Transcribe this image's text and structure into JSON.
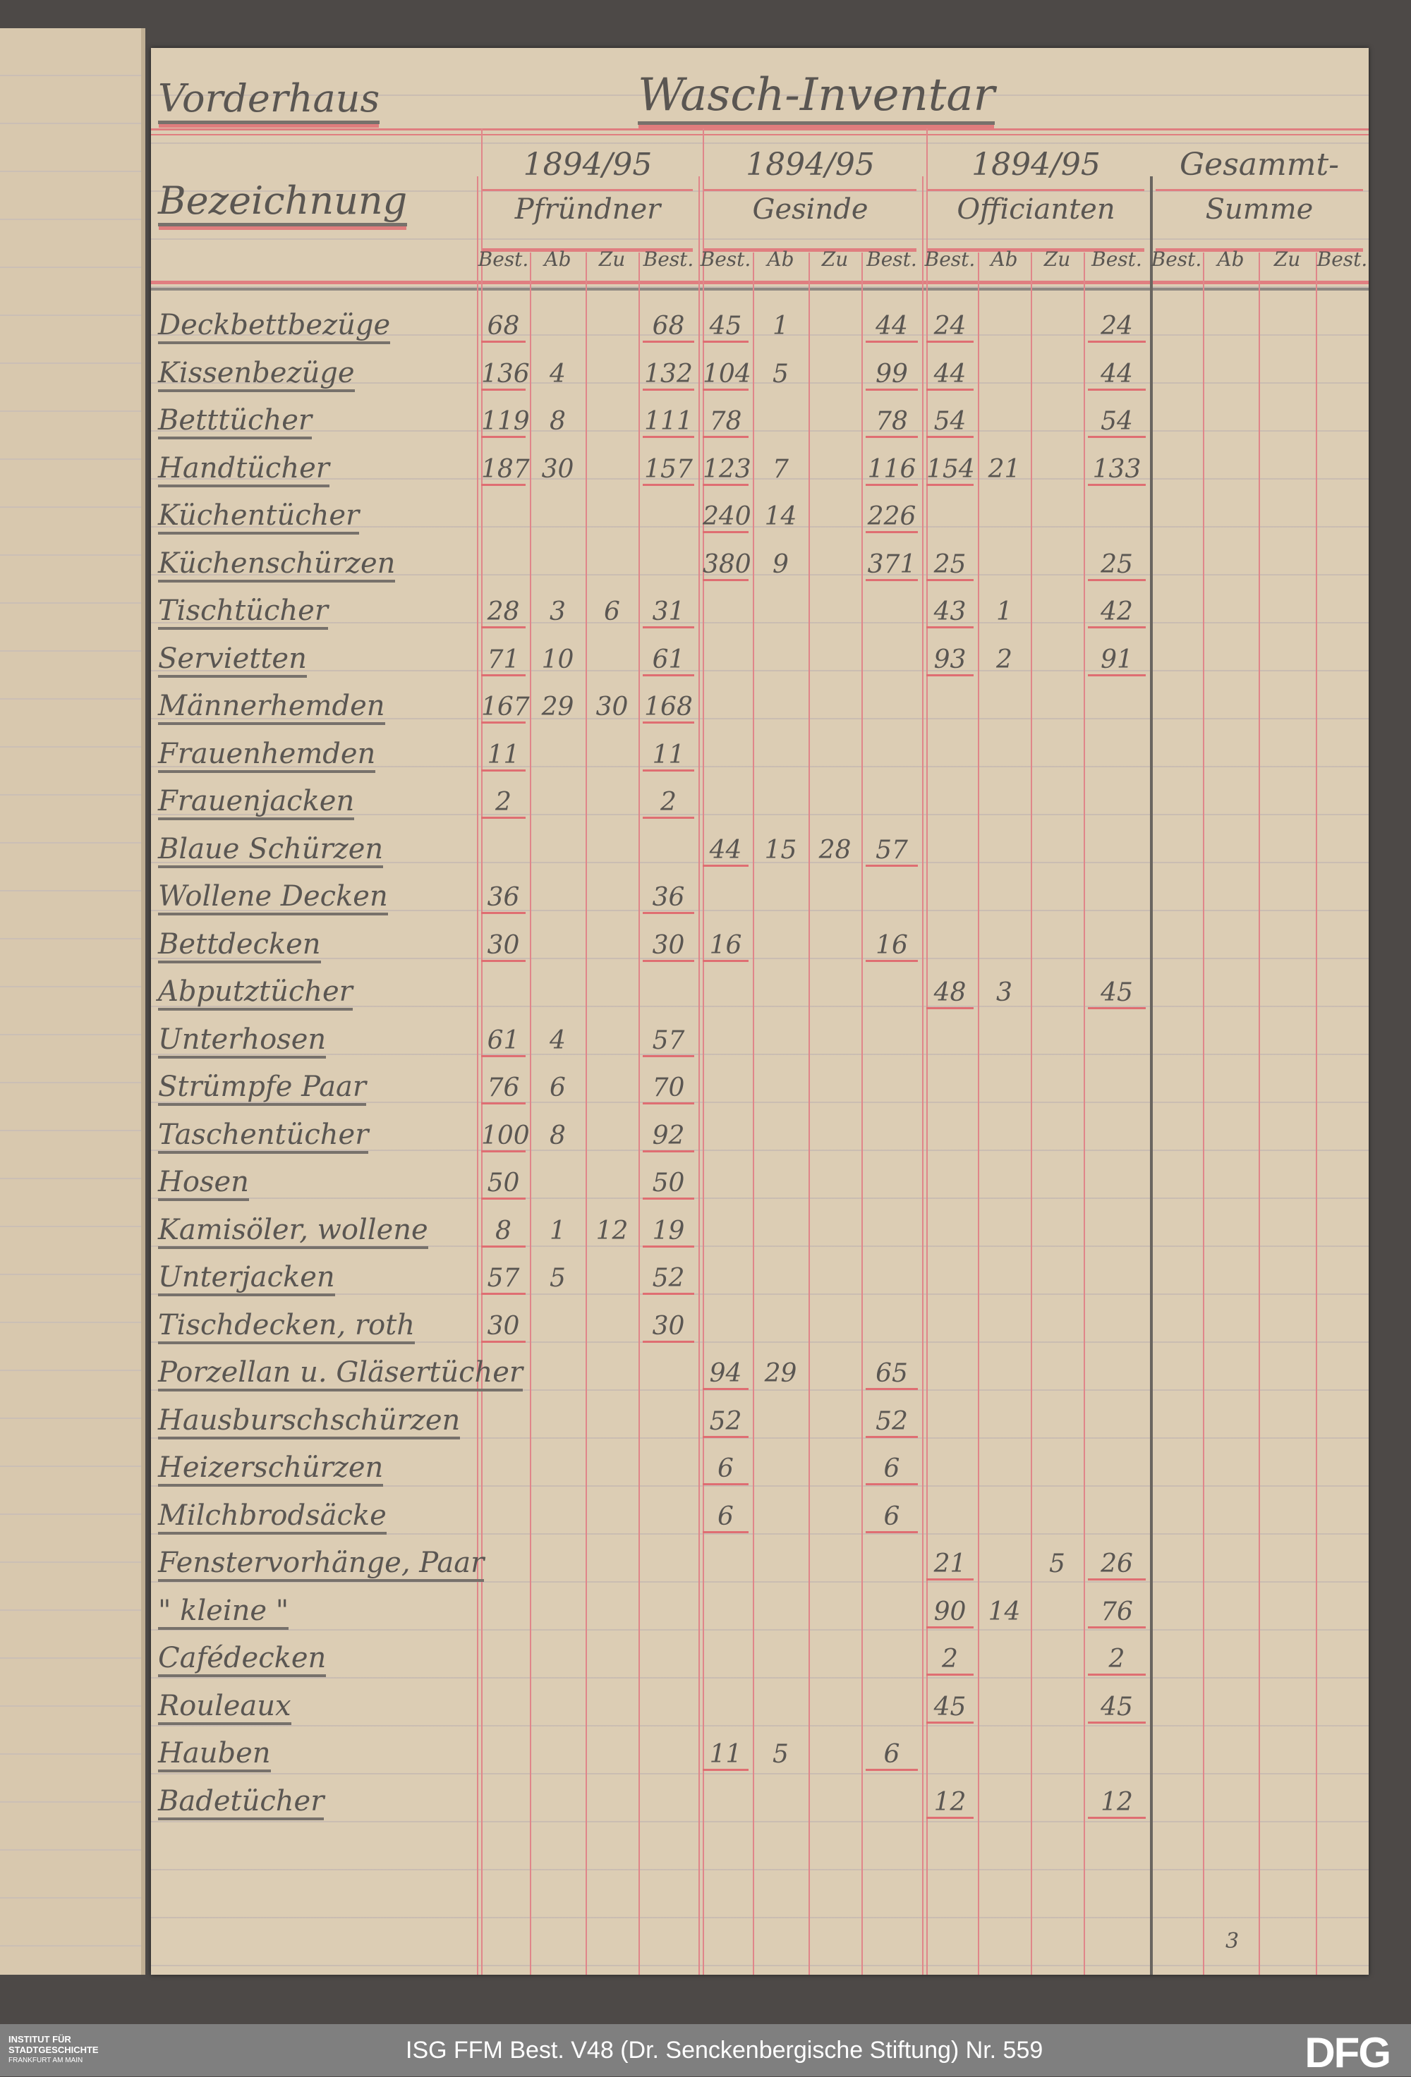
{
  "header": {
    "building": "Vorderhaus",
    "title": "Wasch-Inventar",
    "label_column": "Bezeichnung",
    "groups": [
      {
        "year": "1894/95",
        "name": "Pfründner"
      },
      {
        "year": "1894/95",
        "name": "Gesinde"
      },
      {
        "year": "1894/95",
        "name": "Officianten"
      },
      {
        "year": "Gesammt-",
        "name": "Summe"
      }
    ],
    "subcolumns": [
      "Best.",
      "Ab",
      "Zu",
      "Best."
    ]
  },
  "rows": [
    {
      "name": "Deckbettbezüge",
      "v": [
        "68",
        "",
        "",
        "68",
        "45",
        "1",
        "",
        "44",
        "24",
        "",
        "",
        "24"
      ]
    },
    {
      "name": "Kissenbezüge",
      "v": [
        "136",
        "4",
        "",
        "132",
        "104",
        "5",
        "",
        "99",
        "44",
        "",
        "",
        "44"
      ]
    },
    {
      "name": "Betttücher",
      "v": [
        "119",
        "8",
        "",
        "111",
        "78",
        "",
        "",
        "78",
        "54",
        "",
        "",
        "54"
      ]
    },
    {
      "name": "Handtücher",
      "v": [
        "187",
        "30",
        "",
        "157",
        "123",
        "7",
        "",
        "116",
        "154",
        "21",
        "",
        "133"
      ]
    },
    {
      "name": "Küchentücher",
      "v": [
        "",
        "",
        "",
        "",
        "240",
        "14",
        "",
        "226",
        "",
        "",
        "",
        ""
      ]
    },
    {
      "name": "Küchenschürzen",
      "v": [
        "",
        "",
        "",
        "",
        "380",
        "9",
        "",
        "371",
        "25",
        "",
        "",
        "25"
      ]
    },
    {
      "name": "Tischtücher",
      "v": [
        "28",
        "3",
        "6",
        "31",
        "",
        "",
        "",
        "",
        "43",
        "1",
        "",
        "42"
      ]
    },
    {
      "name": "Servietten",
      "v": [
        "71",
        "10",
        "",
        "61",
        "",
        "",
        "",
        "",
        "93",
        "2",
        "",
        "91"
      ]
    },
    {
      "name": "Männerhemden",
      "v": [
        "167",
        "29",
        "30",
        "168",
        "",
        "",
        "",
        "",
        "",
        "",
        "",
        ""
      ]
    },
    {
      "name": "Frauenhemden",
      "v": [
        "11",
        "",
        "",
        "11",
        "",
        "",
        "",
        "",
        "",
        "",
        "",
        ""
      ]
    },
    {
      "name": "Frauenjacken",
      "v": [
        "2",
        "",
        "",
        "2",
        "",
        "",
        "",
        "",
        "",
        "",
        "",
        ""
      ]
    },
    {
      "name": "Blaue Schürzen",
      "v": [
        "",
        "",
        "",
        "",
        "44",
        "15",
        "28",
        "57",
        "",
        "",
        "",
        ""
      ]
    },
    {
      "name": "Wollene Decken",
      "v": [
        "36",
        "",
        "",
        "36",
        "",
        "",
        "",
        "",
        "",
        "",
        "",
        ""
      ]
    },
    {
      "name": "Bettdecken",
      "v": [
        "30",
        "",
        "",
        "30",
        "16",
        "",
        "",
        "16",
        "",
        "",
        "",
        ""
      ]
    },
    {
      "name": "Abputztücher",
      "v": [
        "",
        "",
        "",
        "",
        "",
        "",
        "",
        "",
        "48",
        "3",
        "",
        "45"
      ]
    },
    {
      "name": "Unterhosen",
      "v": [
        "61",
        "4",
        "",
        "57",
        "",
        "",
        "",
        "",
        "",
        "",
        "",
        ""
      ]
    },
    {
      "name": "Strümpfe    Paar",
      "v": [
        "76",
        "6",
        "",
        "70",
        "",
        "",
        "",
        "",
        "",
        "",
        "",
        ""
      ]
    },
    {
      "name": "Taschentücher",
      "v": [
        "100",
        "8",
        "",
        "92",
        "",
        "",
        "",
        "",
        "",
        "",
        "",
        ""
      ]
    },
    {
      "name": "Hosen",
      "v": [
        "50",
        "",
        "",
        "50",
        "",
        "",
        "",
        "",
        "",
        "",
        "",
        ""
      ]
    },
    {
      "name": "Kamisöler, wollene",
      "v": [
        "8",
        "1",
        "12",
        "19",
        "",
        "",
        "",
        "",
        "",
        "",
        "",
        ""
      ]
    },
    {
      "name": "Unterjacken",
      "v": [
        "57",
        "5",
        "",
        "52",
        "",
        "",
        "",
        "",
        "",
        "",
        "",
        ""
      ]
    },
    {
      "name": "Tischdecken, roth",
      "v": [
        "30",
        "",
        "",
        "30",
        "",
        "",
        "",
        "",
        "",
        "",
        "",
        ""
      ]
    },
    {
      "name": "Porzellan u. Gläsertücher",
      "v": [
        "",
        "",
        "",
        "",
        "94",
        "29",
        "",
        "65",
        "",
        "",
        "",
        ""
      ]
    },
    {
      "name": "Hausburschschürzen",
      "v": [
        "",
        "",
        "",
        "",
        "52",
        "",
        "",
        "52",
        "",
        "",
        "",
        ""
      ]
    },
    {
      "name": "Heizerschürzen",
      "v": [
        "",
        "",
        "",
        "",
        "6",
        "",
        "",
        "6",
        "",
        "",
        "",
        ""
      ]
    },
    {
      "name": "Milchbrodsäcke",
      "v": [
        "",
        "",
        "",
        "",
        "6",
        "",
        "",
        "6",
        "",
        "",
        "",
        ""
      ]
    },
    {
      "name": "Fenstervorhänge, Paar",
      "v": [
        "",
        "",
        "",
        "",
        "",
        "",
        "",
        "",
        "21",
        "",
        "5",
        "26"
      ]
    },
    {
      "name": "  \"  kleine  \"",
      "v": [
        "",
        "",
        "",
        "",
        "",
        "",
        "",
        "",
        "90",
        "14",
        "",
        "76"
      ]
    },
    {
      "name": "Cafédecken",
      "v": [
        "",
        "",
        "",
        "",
        "",
        "",
        "",
        "",
        "2",
        "",
        "",
        "2"
      ]
    },
    {
      "name": "Rouleaux",
      "v": [
        "",
        "",
        "",
        "",
        "",
        "",
        "",
        "",
        "45",
        "",
        "",
        "45"
      ]
    },
    {
      "name": "Hauben",
      "v": [
        "",
        "",
        "",
        "",
        "11",
        "5",
        "",
        "6",
        "",
        "",
        "",
        ""
      ]
    },
    {
      "name": "Badetücher",
      "v": [
        "",
        "",
        "",
        "",
        "",
        "",
        "",
        "",
        "12",
        "",
        "",
        "12"
      ]
    }
  ],
  "page_number": "3",
  "footer": {
    "institute_line1": "INSTITUT FÜR",
    "institute_line2": "STADTGESCHICHTE",
    "institute_line3": "FRANKFURT AM MAIN",
    "caption": "ISG FFM Best. V48 (Dr. Senckenbergische Stiftung) Nr. 559",
    "logo": "DFG"
  },
  "colors": {
    "ink": "#5a5652",
    "rule_red": "#e07e80",
    "paper": "#dccdb4",
    "footer": "#7f7f7f"
  }
}
